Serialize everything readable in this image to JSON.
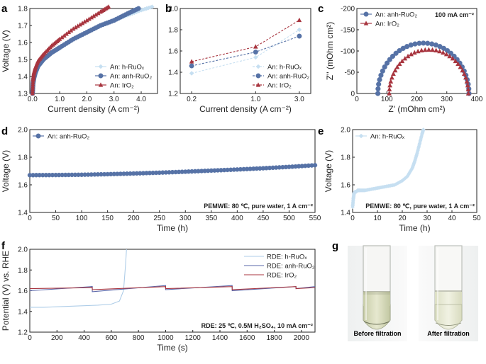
{
  "panel_letters": [
    "a",
    "b",
    "c",
    "d",
    "e",
    "f",
    "g"
  ],
  "photos": {
    "left_caption": "Before filtration",
    "right_caption": "After filtration"
  },
  "colors": {
    "h_ruox": "#c6dff1",
    "anh_ruo2": "#5672a6",
    "iro2": "#a8353f"
  },
  "chart_data": [
    {
      "panel": "a",
      "type": "line",
      "xlabel": "Current density (A cm⁻²)",
      "ylabel": "Voltage (V)",
      "xlim": [
        -0.1,
        4.6
      ],
      "ylim": [
        1.3,
        1.8
      ],
      "xticks": [
        "0.0",
        "1.0",
        "2.0",
        "3.0",
        "4.0"
      ],
      "yticks": [
        "1.3",
        "1.4",
        "1.5",
        "1.6",
        "1.7",
        "1.8"
      ],
      "legend": "bottom-right",
      "series": [
        {
          "name": "An: h-RuOₓ",
          "marker": "diamond",
          "color": "#c6dff1",
          "x": [
            0,
            0.02,
            0.05,
            0.1,
            0.2,
            0.4,
            0.7,
            1.0,
            1.5,
            2.0,
            2.5,
            3.0,
            3.5,
            4.0,
            4.4
          ],
          "y": [
            1.3,
            1.36,
            1.4,
            1.43,
            1.46,
            1.5,
            1.54,
            1.57,
            1.62,
            1.66,
            1.7,
            1.73,
            1.76,
            1.79,
            1.81
          ]
        },
        {
          "name": "An: anh-RuO₂",
          "marker": "circle",
          "color": "#5672a6",
          "x": [
            0,
            0.02,
            0.05,
            0.1,
            0.2,
            0.4,
            0.7,
            1.0,
            1.5,
            2.0,
            2.5,
            3.0,
            3.5,
            3.9
          ],
          "y": [
            1.3,
            1.36,
            1.39,
            1.42,
            1.46,
            1.5,
            1.54,
            1.57,
            1.62,
            1.66,
            1.7,
            1.73,
            1.77,
            1.8
          ]
        },
        {
          "name": "An: IrO₂",
          "marker": "triangle",
          "color": "#a8353f",
          "x": [
            0,
            0.02,
            0.05,
            0.1,
            0.2,
            0.4,
            0.7,
            1.0,
            1.5,
            2.0,
            2.5,
            2.8
          ],
          "y": [
            1.3,
            1.38,
            1.42,
            1.45,
            1.49,
            1.53,
            1.58,
            1.62,
            1.68,
            1.73,
            1.78,
            1.81
          ]
        }
      ]
    },
    {
      "panel": "b",
      "type": "line",
      "xlabel": "Current density (A cm⁻²)",
      "ylabel": "",
      "xscale": "log",
      "xlim": [
        0.15,
        4.0
      ],
      "ylim": [
        1.2,
        2.0
      ],
      "xticks": [
        "0.2",
        "1.0",
        "3.0"
      ],
      "yticks": [
        "1.2",
        "1.4",
        "1.6",
        "1.8",
        "2.0"
      ],
      "legend": "bottom-right",
      "series": [
        {
          "name": "An: h-RuOₓ",
          "marker": "diamond",
          "color": "#c6dff1",
          "x": [
            0.2,
            1.0,
            3.0
          ],
          "y": [
            1.39,
            1.54,
            1.8
          ]
        },
        {
          "name": "An: anh-RuO₂",
          "marker": "circle",
          "color": "#5672a6",
          "x": [
            0.2,
            1.0,
            3.0
          ],
          "y": [
            1.46,
            1.59,
            1.74
          ]
        },
        {
          "name": "An: IrO₂",
          "marker": "triangle",
          "color": "#a8353f",
          "x": [
            0.2,
            1.0,
            3.0
          ],
          "y": [
            1.5,
            1.64,
            1.89
          ]
        }
      ]
    },
    {
      "panel": "c",
      "type": "scatter",
      "xlabel": "Z' (mOhm cm²)",
      "ylabel": "Z'' (mOhm cm²)",
      "annotation": "100 mA cm⁻²",
      "xlim": [
        0,
        400
      ],
      "ylim": [
        0,
        -200
      ],
      "yinverted": true,
      "xticks": [
        "0",
        "100",
        "200",
        "300",
        "400"
      ],
      "yticks": [
        "0",
        "-50",
        "-100",
        "-150",
        "-200"
      ],
      "legend": "top-left",
      "series": [
        {
          "name": "An: anh-RuO₂",
          "marker": "circle",
          "color": "#5672a6",
          "center": 222,
          "radius": 152
        },
        {
          "name": "An: IrO₂",
          "marker": "triangle",
          "color": "#a8353f",
          "center": 240,
          "radius": 132
        }
      ]
    },
    {
      "panel": "d",
      "type": "scatter",
      "xlabel": "Time (h)",
      "ylabel": "Voltage (V)",
      "annotation": "PEMWE: 80 ℃, pure water, 1 A cm⁻²",
      "xlim": [
        0,
        550
      ],
      "ylim": [
        1.4,
        2.0
      ],
      "xticks": [
        "0",
        "50",
        "100",
        "150",
        "200",
        "250",
        "300",
        "350",
        "400",
        "450",
        "500",
        "550"
      ],
      "yticks": [
        "1.4",
        "1.6",
        "1.8",
        "2.0"
      ],
      "legend": "top-left",
      "series": [
        {
          "name": "An: anh-RuO₂",
          "marker": "circle",
          "color": "#5672a6",
          "x": [
            0,
            50,
            100,
            150,
            200,
            250,
            300,
            350,
            400,
            450,
            500,
            550
          ],
          "y": [
            1.67,
            1.671,
            1.673,
            1.677,
            1.682,
            1.688,
            1.695,
            1.703,
            1.711,
            1.72,
            1.73,
            1.742
          ]
        }
      ]
    },
    {
      "panel": "e",
      "type": "scatter",
      "xlabel": "Time (h)",
      "ylabel": "Voltage (V)",
      "annotation": "PEMWE: 80 ℃, pure water, 1 A cm⁻²",
      "xlim": [
        0,
        50
      ],
      "ylim": [
        1.4,
        2.0
      ],
      "xticks": [
        "0",
        "10",
        "20",
        "30",
        "40",
        "50"
      ],
      "yticks": [
        "1.4",
        "1.6",
        "1.8",
        "2.0"
      ],
      "legend": "top-left",
      "series": [
        {
          "name": "An: h-RuOₓ",
          "marker": "diamond",
          "color": "#c6dff1",
          "x": [
            0,
            0.3,
            0.6,
            1,
            1.5,
            2,
            3,
            5,
            8,
            11,
            14,
            17,
            20,
            22,
            24,
            25,
            26,
            27,
            28,
            28.5
          ],
          "y": [
            1.44,
            1.5,
            1.54,
            1.55,
            1.55,
            1.56,
            1.56,
            1.56,
            1.57,
            1.58,
            1.59,
            1.6,
            1.63,
            1.66,
            1.72,
            1.77,
            1.83,
            1.9,
            1.97,
            2.0
          ]
        }
      ]
    },
    {
      "panel": "f",
      "type": "line",
      "xlabel": "Time (s)",
      "ylabel": "Potential (V) vs. RHE",
      "annotation": "RDE: 25 ℃, 0.5M H₂SO₄, 10 mA cm⁻²",
      "xlim": [
        0,
        2100
      ],
      "ylim": [
        1.2,
        2.0
      ],
      "xticks": [
        "0",
        "200",
        "400",
        "600",
        "800",
        "1000",
        "1200",
        "1400",
        "1600",
        "1800",
        "2000"
      ],
      "yticks": [
        "1.2",
        "1.4",
        "1.6",
        "1.8",
        "2.0"
      ],
      "legend": "top-right",
      "series": [
        {
          "name": "RDE: h-RuOₓ",
          "color": "#aecde8",
          "x": [
            0,
            100,
            300,
            500,
            600,
            660,
            690,
            705,
            712
          ],
          "y": [
            1.44,
            1.44,
            1.45,
            1.46,
            1.47,
            1.5,
            1.6,
            1.85,
            2.0
          ]
        },
        {
          "name": "RDE: anh-RuO₂",
          "color": "#5a67aa",
          "x": [
            0,
            460,
            460,
            1000,
            1000,
            1490,
            1490,
            1960,
            1960,
            2100
          ],
          "y": [
            1.6,
            1.64,
            1.59,
            1.65,
            1.61,
            1.65,
            1.6,
            1.64,
            1.62,
            1.64
          ]
        },
        {
          "name": "RDE: IrO₂",
          "color": "#a8353f",
          "x": [
            0,
            460,
            460,
            1000,
            1000,
            1490,
            1490,
            1960,
            1960,
            2100
          ],
          "y": [
            1.62,
            1.63,
            1.61,
            1.64,
            1.62,
            1.64,
            1.61,
            1.64,
            1.62,
            1.63
          ]
        }
      ]
    }
  ]
}
